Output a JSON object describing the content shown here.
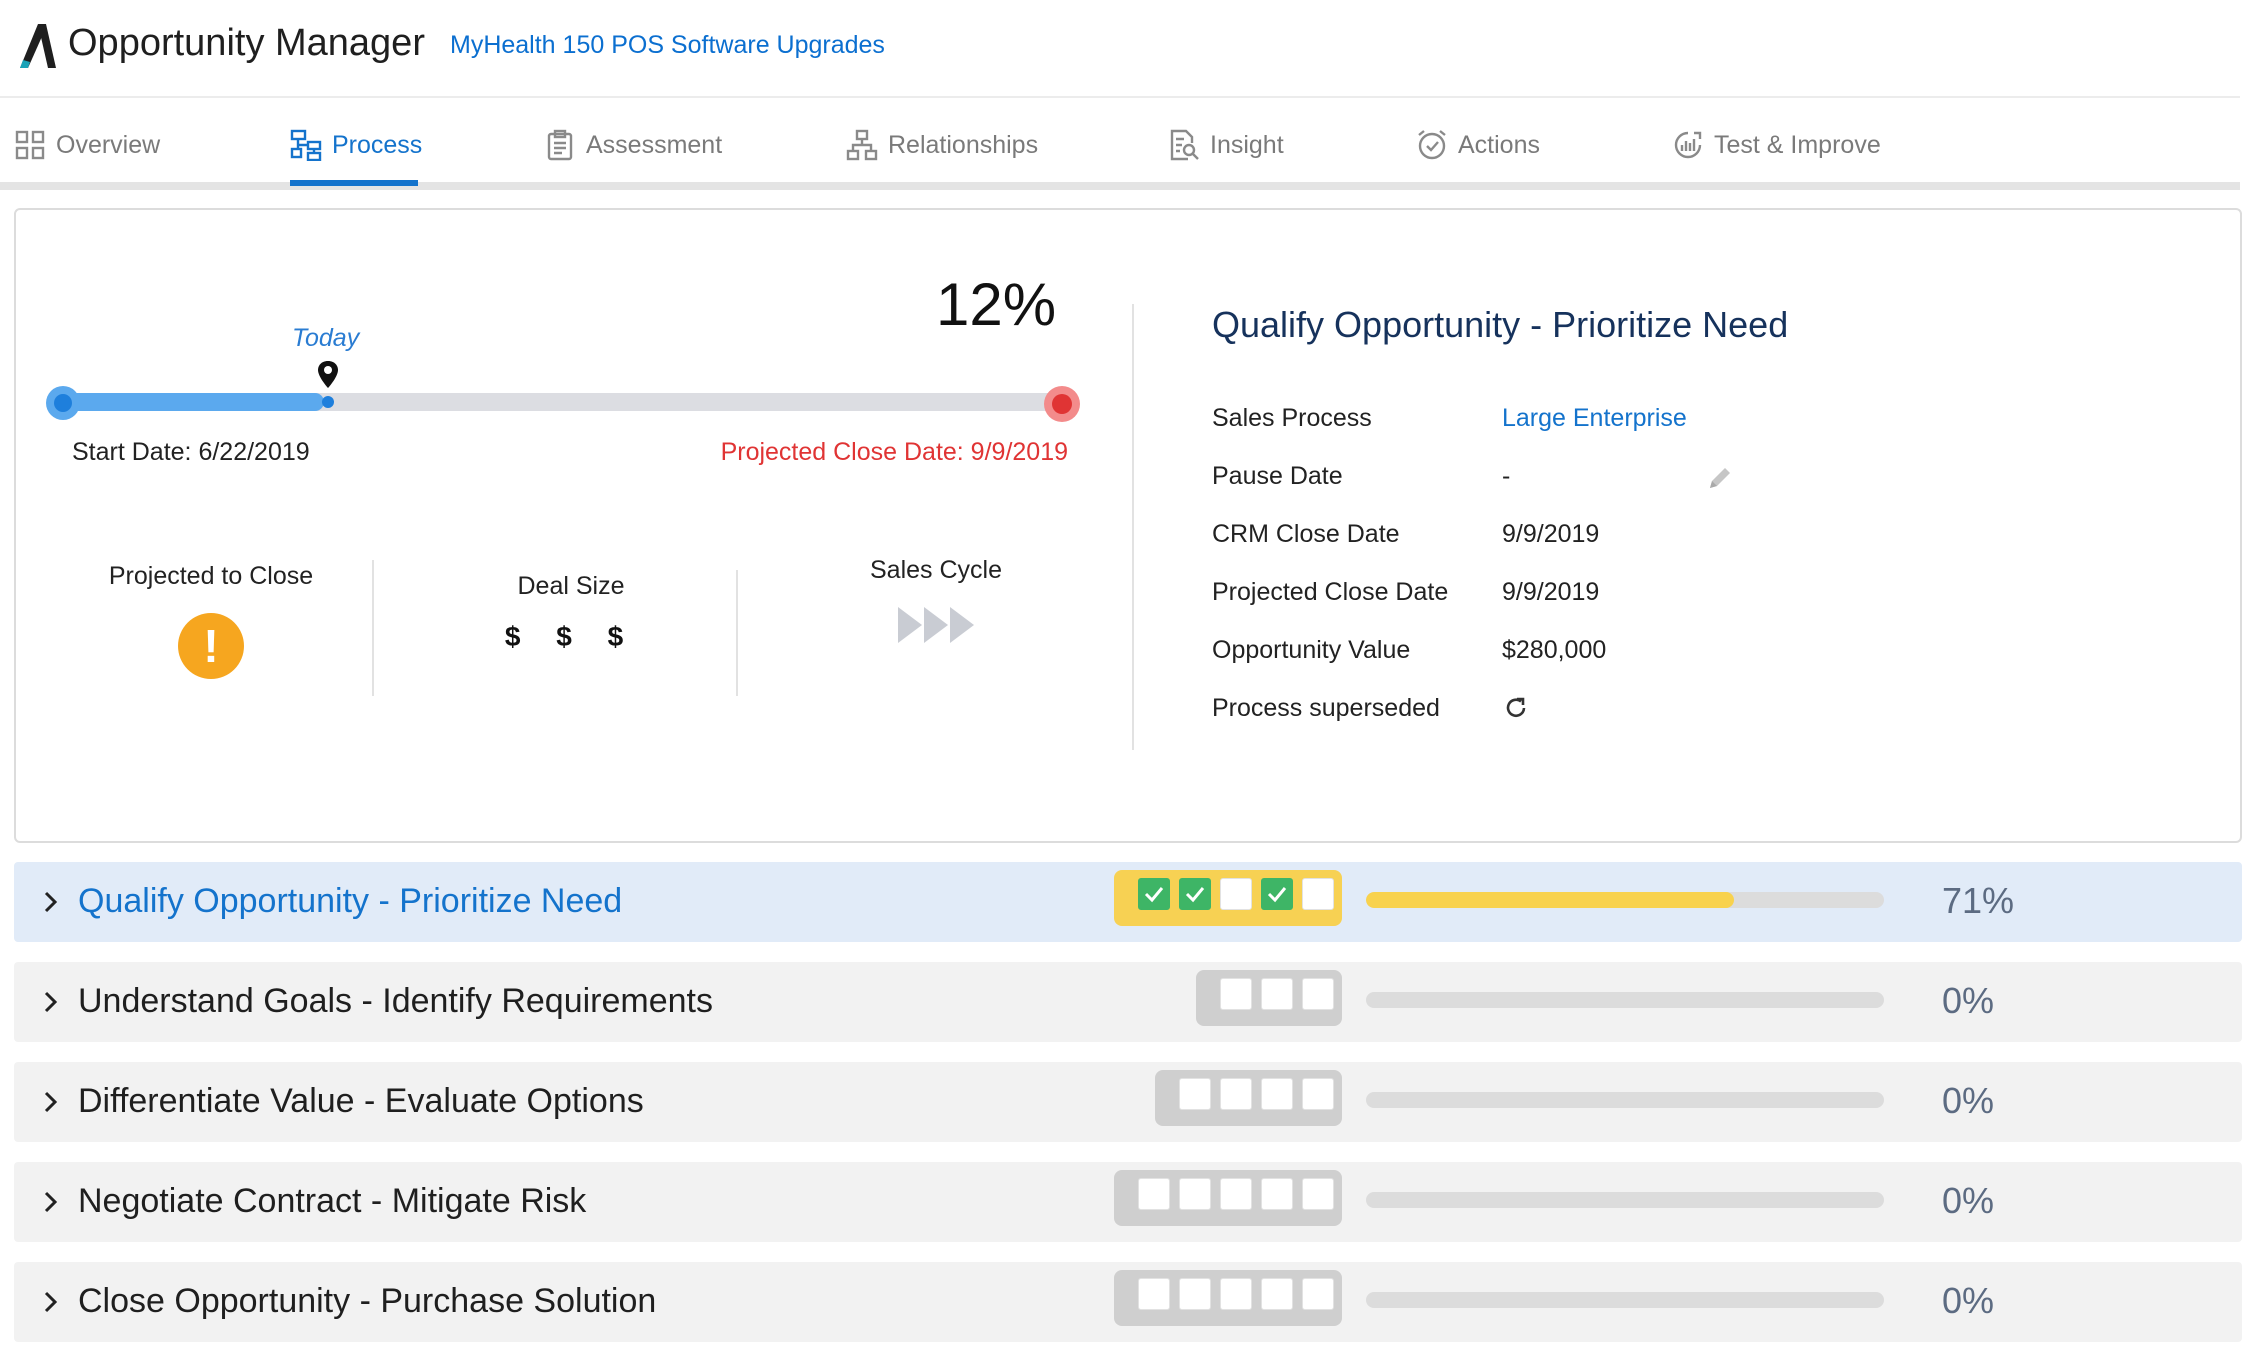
{
  "header": {
    "app_title": "Opportunity Manager",
    "record_name": "MyHealth 150 POS Software Upgrades"
  },
  "tabs": [
    {
      "label": "Overview",
      "icon": "grid-icon",
      "active": false
    },
    {
      "label": "Process",
      "icon": "process-flow-icon",
      "active": true
    },
    {
      "label": "Assessment",
      "icon": "clipboard-icon",
      "active": false
    },
    {
      "label": "Relationships",
      "icon": "hierarchy-icon",
      "active": false
    },
    {
      "label": "Insight",
      "icon": "document-search-icon",
      "active": false
    },
    {
      "label": "Actions",
      "icon": "alarm-clock-icon",
      "active": false
    },
    {
      "label": "Test & Improve",
      "icon": "chart-circle-icon",
      "active": false
    }
  ],
  "timeline": {
    "percent_label": "12%",
    "today_label": "Today",
    "start_date": "Start Date: 6/22/2019",
    "projected_close_date": "Projected Close Date: 9/9/2019",
    "progress_fraction": 0.26,
    "colors": {
      "track": "#dcdde2",
      "fill": "#5ba9ee",
      "end": "#e03434"
    }
  },
  "stats": {
    "projected_to_close": {
      "label": "Projected to Close",
      "icon": "warning-icon",
      "color": "#f6a61f"
    },
    "deal_size": {
      "label": "Deal Size",
      "value": "$ $ $"
    },
    "sales_cycle": {
      "label": "Sales Cycle",
      "icon": "triple-chevron-icon"
    }
  },
  "details": {
    "title": "Qualify Opportunity - Prioritize Need",
    "rows": [
      {
        "key": "Sales Process",
        "value": "Large Enterprise"
      },
      {
        "key": "Pause Date",
        "value": "-"
      },
      {
        "key": "CRM Close Date",
        "value": "9/9/2019"
      },
      {
        "key": "Projected Close Date",
        "value": "9/9/2019"
      },
      {
        "key": "Opportunity Value",
        "value": "$280,000"
      },
      {
        "key": "Process superseded",
        "value": ""
      }
    ]
  },
  "stages": [
    {
      "name": "Qualify Opportunity - Prioritize Need",
      "percent_label": "71%",
      "progress": 0.71,
      "checks": [
        true,
        true,
        false,
        true,
        false
      ],
      "active": true
    },
    {
      "name": "Understand Goals - Identify Requirements",
      "percent_label": "0%",
      "progress": 0,
      "checks": [
        false,
        false,
        false
      ],
      "active": false
    },
    {
      "name": "Differentiate Value - Evaluate Options",
      "percent_label": "0%",
      "progress": 0,
      "checks": [
        false,
        false,
        false,
        false
      ],
      "active": false
    },
    {
      "name": "Negotiate Contract - Mitigate Risk",
      "percent_label": "0%",
      "progress": 0,
      "checks": [
        false,
        false,
        false,
        false,
        false
      ],
      "active": false
    },
    {
      "name": "Close Opportunity - Purchase Solution",
      "percent_label": "0%",
      "progress": 0,
      "checks": [
        false,
        false,
        false,
        false,
        false
      ],
      "active": false
    }
  ]
}
